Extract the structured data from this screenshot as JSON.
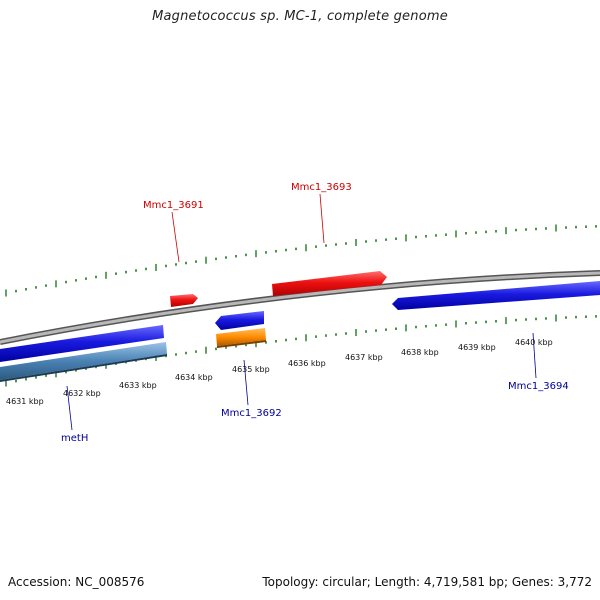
{
  "title": "Magnetococcus sp. MC-1, complete genome",
  "footer": {
    "accession": "Accession: NC_008576",
    "summary": "Topology: circular; Length: 4,719,581 bp; Genes: 3,772"
  },
  "colors": {
    "forward_gene": "#ee1111",
    "reverse_gene": "#1a1ae0",
    "orange_feature": "#ff8c00",
    "steel_feature": "#4a82b4",
    "backbone": "#8a8a8a",
    "tick": "#1e7a1e",
    "label_forward": "#cc0000",
    "label_reverse": "#000099"
  },
  "scale": {
    "unit": "kbp",
    "ticks": [
      "4631 kbp",
      "4632 kbp",
      "4633 kbp",
      "4634 kbp",
      "4635 kbp",
      "4636 kbp",
      "4637 kbp",
      "4638 kbp",
      "4639 kbp",
      "4640 kbp"
    ]
  },
  "gene_labels": [
    {
      "id": "mmc1-3691",
      "text": "Mmc1_3691",
      "strand": "forward"
    },
    {
      "id": "mmc1-3693",
      "text": "Mmc1_3693",
      "strand": "forward"
    },
    {
      "id": "mmc1-3692",
      "text": "Mmc1_3692",
      "strand": "reverse"
    },
    {
      "id": "mmc1-3694",
      "text": "Mmc1_3694",
      "strand": "reverse"
    },
    {
      "id": "meth",
      "text": "metH",
      "strand": "reverse"
    }
  ]
}
